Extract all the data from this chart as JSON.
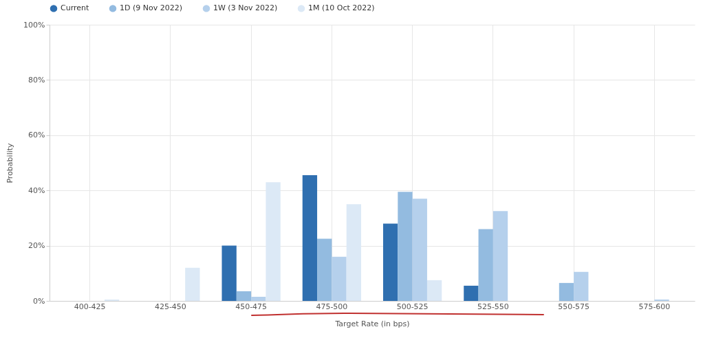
{
  "chart_data": {
    "type": "bar",
    "xlabel": "Target Rate (in bps)",
    "ylabel": "Probability",
    "categories": [
      "400-425",
      "425-450",
      "450-475",
      "475-500",
      "500-525",
      "525-550",
      "550-575",
      "575-600"
    ],
    "series": [
      {
        "name": "Current",
        "color": "#2f6fb0",
        "values": [
          0,
          0,
          20,
          45.5,
          28,
          5.5,
          0,
          0
        ]
      },
      {
        "name": "1D (9 Nov 2022)",
        "color": "#93bbe0",
        "values": [
          0,
          0,
          3.5,
          22.5,
          39.5,
          26,
          6.5,
          0
        ]
      },
      {
        "name": "1W (3 Nov 2022)",
        "color": "#b5d0ec",
        "values": [
          0,
          0,
          1.5,
          16,
          37,
          32.5,
          10.5,
          0.5
        ]
      },
      {
        "name": "1M (10 Oct 2022)",
        "color": "#dce9f6",
        "values": [
          0.5,
          12,
          43,
          35,
          7.5,
          0,
          0,
          0
        ]
      }
    ],
    "ylim": [
      0,
      100
    ],
    "yticks": [
      {
        "value": 0,
        "label": "0%"
      },
      {
        "value": 20,
        "label": "20%"
      },
      {
        "value": 40,
        "label": "40%"
      },
      {
        "value": 60,
        "label": "60%"
      },
      {
        "value": 80,
        "label": "80%"
      },
      {
        "value": 100,
        "label": "100%"
      }
    ],
    "grid": true,
    "legend": "top"
  }
}
